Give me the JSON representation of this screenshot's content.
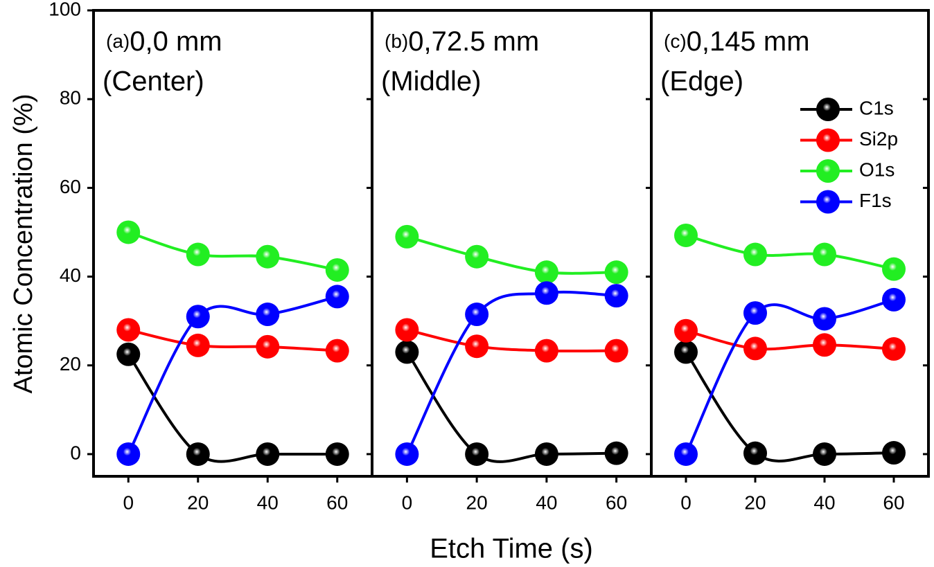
{
  "chart_data": [
    {
      "type": "line",
      "panel_label": "(a)",
      "title": "0,0 mm",
      "subtitle": "(Center)",
      "ylabel": "Atomic Concentration (%)",
      "x": [
        0,
        20,
        40,
        60
      ],
      "xlim": [
        -10,
        70
      ],
      "xticks": [
        0,
        20,
        40,
        60
      ],
      "ylim": [
        -5,
        100
      ],
      "yticks": [
        0,
        20,
        40,
        60,
        80,
        100
      ],
      "series": [
        {
          "color": "#000000",
          "values": [
            22.5,
            0,
            0,
            0
          ]
        },
        {
          "color": "#ff0000",
          "values": [
            28,
            24.5,
            24.2,
            23.3
          ]
        },
        {
          "color": "#22ee22",
          "values": [
            50,
            45,
            44.5,
            41.5
          ]
        },
        {
          "color": "#0000ff",
          "values": [
            0,
            31,
            31.5,
            35.5
          ]
        }
      ]
    },
    {
      "type": "line",
      "panel_label": "(b)",
      "title": "0,72.5 mm",
      "subtitle": "(Middle)",
      "xlabel": "Etch Time (s)",
      "x": [
        0,
        20,
        40,
        60
      ],
      "xlim": [
        -10,
        70
      ],
      "xticks": [
        0,
        20,
        40,
        60
      ],
      "ylim": [
        -5,
        100
      ],
      "series": [
        {
          "color": "#000000",
          "values": [
            23,
            0,
            0,
            0.2
          ]
        },
        {
          "color": "#ff0000",
          "values": [
            28,
            24.3,
            23.3,
            23.3
          ]
        },
        {
          "color": "#22ee22",
          "values": [
            49,
            44.5,
            41,
            41
          ]
        },
        {
          "color": "#0000ff",
          "values": [
            0,
            31.5,
            36.3,
            35.7
          ]
        }
      ]
    },
    {
      "type": "line",
      "panel_label": "(c)",
      "title": "0,145 mm",
      "subtitle": "(Edge)",
      "x": [
        0,
        20,
        40,
        60
      ],
      "xlim": [
        -10,
        70
      ],
      "xticks": [
        0,
        20,
        40,
        60
      ],
      "ylim": [
        -5,
        100
      ],
      "legend": "upper right",
      "series": [
        {
          "name": "C1s",
          "color": "#000000",
          "values": [
            23,
            0.2,
            0,
            0.3
          ]
        },
        {
          "name": "Si2p",
          "color": "#ff0000",
          "values": [
            27.8,
            23.8,
            24.6,
            23.7
          ]
        },
        {
          "name": "O1s",
          "color": "#22ee22",
          "values": [
            49.3,
            45,
            45,
            41.7
          ]
        },
        {
          "name": "F1s",
          "color": "#0000ff",
          "values": [
            0,
            31.8,
            30.5,
            34.8
          ]
        }
      ]
    }
  ]
}
